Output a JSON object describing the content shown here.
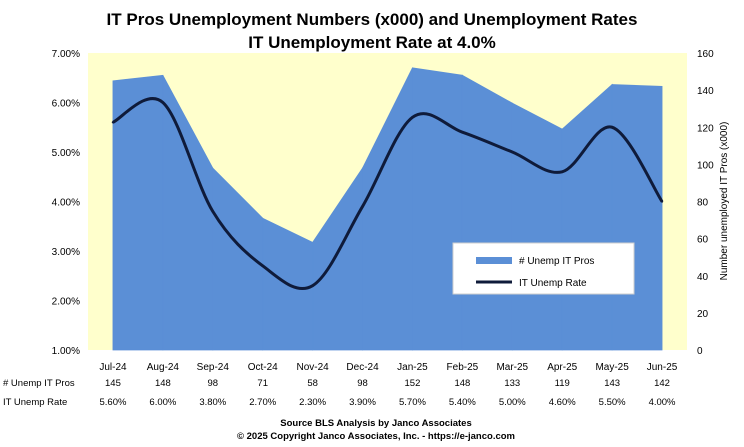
{
  "chart_data": {
    "type": "area",
    "title": "IT Pros Unemployment Numbers (x000) and Unemployment Rates",
    "subtitle": "IT Unemployment Rate at 4.0%",
    "categories": [
      "Jul-24",
      "Aug-24",
      "Sep-24",
      "Oct-24",
      "Nov-24",
      "Dec-24",
      "Jan-25",
      "Feb-25",
      "Mar-25",
      "Apr-25",
      "May-25",
      "Jun-25"
    ],
    "series": [
      {
        "name": "# Unemp IT Pros",
        "type": "area",
        "axis": "right",
        "color": "#5b8fd6",
        "values": [
          145,
          148,
          98,
          71,
          58,
          98,
          152,
          148,
          133,
          119,
          143,
          142
        ]
      },
      {
        "name": "IT Unemp Rate",
        "type": "line",
        "axis": "left",
        "color": "#0f1b3a",
        "values": [
          5.6,
          6.0,
          3.8,
          2.7,
          2.3,
          3.9,
          5.7,
          5.4,
          5.0,
          4.6,
          5.5,
          4.0
        ]
      }
    ],
    "ylim_left": [
      1.0,
      7.0
    ],
    "yticks_left": [
      "1.00%",
      "2.00%",
      "3.00%",
      "4.00%",
      "5.00%",
      "6.00%",
      "7.00%"
    ],
    "ylim_right": [
      0,
      160
    ],
    "yticks_right": [
      "0",
      "20",
      "40",
      "60",
      "80",
      "100",
      "120",
      "140",
      "160"
    ],
    "ylabel_right": "Number unemployed IT Pros (x000)",
    "plot_background": "#ffffcc",
    "legend": "center-right",
    "table": {
      "rows": [
        {
          "label": "# Unemp IT Pros",
          "values": [
            "145",
            "148",
            "98",
            "71",
            "58",
            "98",
            "152",
            "148",
            "133",
            "119",
            "143",
            "142"
          ]
        },
        {
          "label": "IT Unemp Rate",
          "values": [
            "5.60%",
            "6.00%",
            "3.80%",
            "2.70%",
            "2.30%",
            "3.90%",
            "5.70%",
            "5.40%",
            "5.00%",
            "4.60%",
            "5.50%",
            "4.00%"
          ]
        }
      ]
    },
    "source_lines": [
      "Source BLS Analysis by Janco Associates",
      "© 2025 Copyright Janco Associates, Inc. - https://e-janco.com"
    ]
  }
}
